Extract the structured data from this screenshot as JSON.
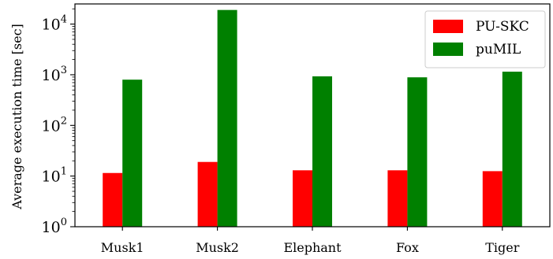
{
  "chart_data": {
    "type": "bar",
    "yscale": "log",
    "ylabel": "Average execution time [sec]",
    "xlabel": "",
    "ylim": [
      1,
      25000
    ],
    "categories": [
      "Musk1",
      "Musk2",
      "Elephant",
      "Fox",
      "Tiger"
    ],
    "y_ticks": [
      1,
      10,
      100,
      1000,
      10000
    ],
    "y_tick_labels": [
      {
        "base": "10",
        "exp": "0"
      },
      {
        "base": "10",
        "exp": "1"
      },
      {
        "base": "10",
        "exp": "2"
      },
      {
        "base": "10",
        "exp": "3"
      },
      {
        "base": "10",
        "exp": "4"
      }
    ],
    "series": [
      {
        "name": "PU-SKC",
        "color": "#ff0000",
        "values": [
          11.5,
          19,
          13,
          13,
          12.5
        ]
      },
      {
        "name": "puMIL",
        "color": "#008000",
        "values": [
          800,
          19000,
          930,
          890,
          1150
        ]
      }
    ],
    "legend": {
      "position": "top-right"
    },
    "grid": false
  }
}
